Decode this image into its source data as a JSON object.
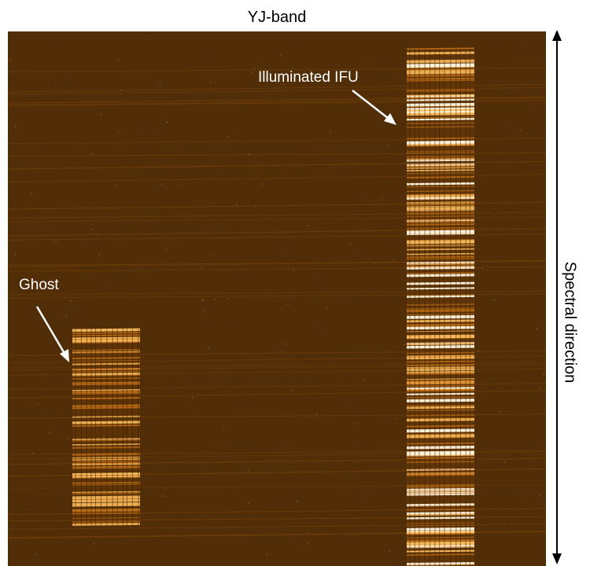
{
  "figure": {
    "title": "YJ-band",
    "annotations": {
      "illuminated": "Illuminated IFU",
      "ghost": "Ghost"
    },
    "axis_label": "Spectral direction"
  },
  "colors": {
    "background": "#ffffff",
    "detector": "#512e07",
    "faint_line": "#7a430b",
    "medium_line": "#d07818",
    "bright_line": "#ffc060",
    "saturated_line": "#fff4dc",
    "annotation": "#ffffff",
    "text": "#000000"
  }
}
